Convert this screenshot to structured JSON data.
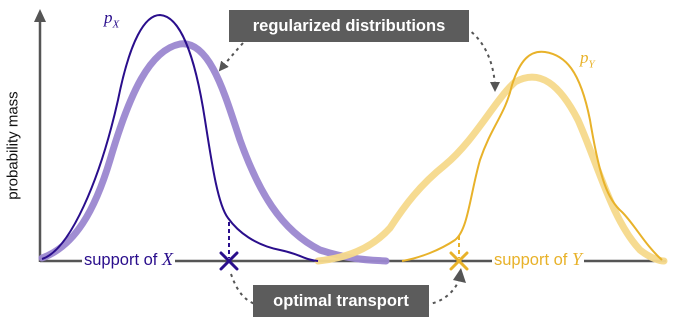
{
  "ylabel": "probability mass",
  "callouts": {
    "top": "regularized distributions",
    "bottom": "optimal transport"
  },
  "support_x": {
    "text": "support of ",
    "var": "X"
  },
  "support_y": {
    "text": "support of ",
    "var": "Y"
  },
  "labels": {
    "px_base": "p",
    "px_sub": "X",
    "py_base": "p",
    "py_sub": "Y"
  },
  "colors": {
    "x_dark": "#2a0e8c",
    "x_light": "#9b87d0",
    "y_dark": "#e8b22a",
    "y_light": "#f5d98b",
    "axis": "#555555",
    "callout_bg": "#5c5c5c"
  }
}
